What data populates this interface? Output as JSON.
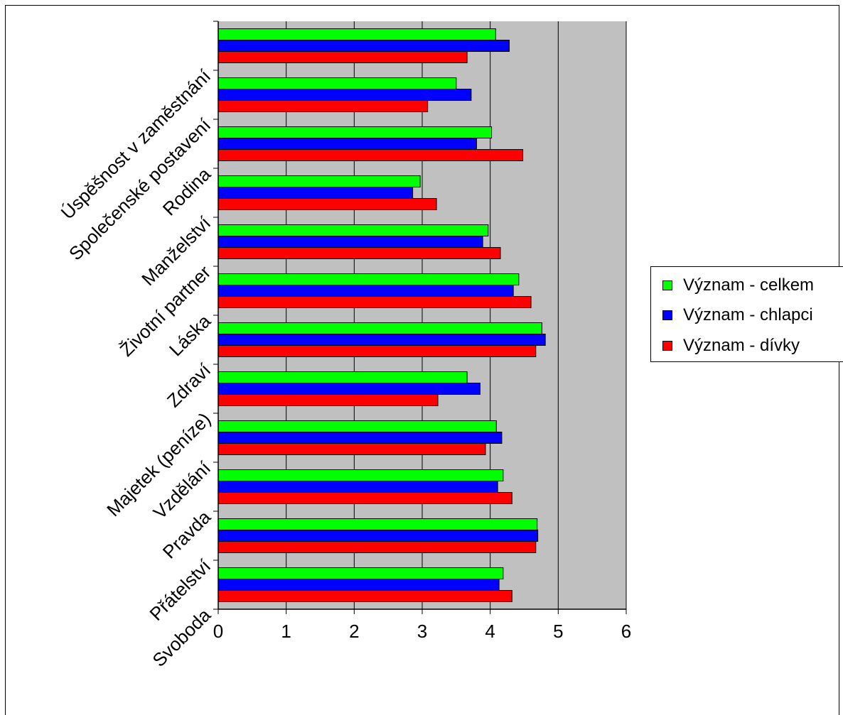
{
  "chart_data": {
    "type": "bar",
    "orientation": "horizontal",
    "categories": [
      "Úspěšnost v zaměstnání",
      "Společenské postavení",
      "Rodina",
      "Manželství",
      "Životní partner",
      "Láska",
      "Zdraví",
      "Majetek (peníze)",
      "Vzdělání",
      "Pravda",
      "Přátelství",
      "Svoboda"
    ],
    "series": [
      {
        "name": "Význam - celkem",
        "color": "#00ff00",
        "values": [
          4.08,
          3.5,
          4.02,
          2.97,
          3.97,
          4.42,
          4.76,
          3.66,
          4.09,
          4.19,
          4.69,
          4.19
        ]
      },
      {
        "name": "Význam - chlapci",
        "color": "#0000ff",
        "values": [
          4.28,
          3.72,
          3.8,
          2.86,
          3.89,
          4.34,
          4.81,
          3.85,
          4.17,
          4.11,
          4.7,
          4.13
        ]
      },
      {
        "name": "Význam - dívky",
        "color": "#ff0000",
        "values": [
          3.66,
          3.08,
          4.48,
          3.21,
          4.15,
          4.6,
          4.67,
          3.23,
          3.93,
          4.32,
          4.67,
          4.32
        ]
      }
    ],
    "xlim": [
      0,
      6
    ],
    "x_ticks": [
      "0",
      "1",
      "2",
      "3",
      "4",
      "5",
      "6"
    ],
    "plot_background": "#c0c0c0",
    "grid": true,
    "legend_position": "right"
  }
}
